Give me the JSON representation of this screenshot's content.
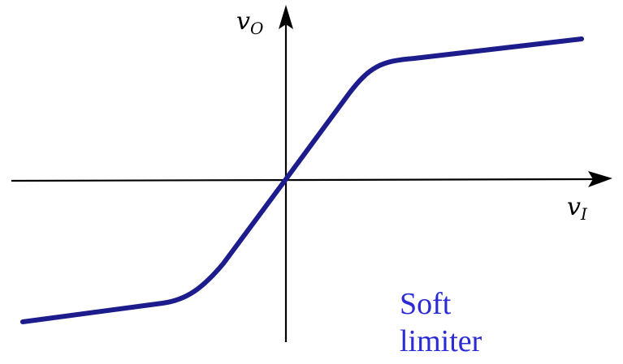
{
  "diagram": {
    "y_axis_label": {
      "main": "v",
      "sub": "O"
    },
    "x_axis_label": {
      "main": "v",
      "sub": "I"
    },
    "caption_lines": [
      "Soft",
      "limiter"
    ],
    "colors": {
      "curve": "#1c1c8c",
      "axes": "#000000",
      "caption": "#2b2bd6"
    }
  }
}
